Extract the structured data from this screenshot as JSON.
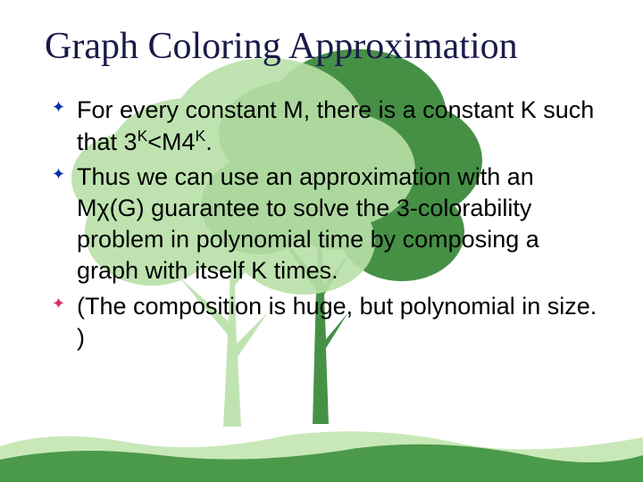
{
  "slide": {
    "title": "Graph Coloring Approximation",
    "bullets": [
      {
        "text_html": "For every constant M, there is a constant K such that 3<sup>K</sup>&lt;M4<sup>K</sup>."
      },
      {
        "text_html": "Thus we can use an approximation with an M&chi;(G) guarantee to solve the 3-colorability problem in polynomial time by composing a graph with itself K times."
      },
      {
        "text_html": "(The composition is huge, but polynomial in size. )"
      }
    ]
  },
  "theme": {
    "title_color": "#1a1a4a",
    "text_color": "#000000",
    "bullet_colors": [
      "#0033aa",
      "#0033aa",
      "#cc3366"
    ],
    "tree_light": "#b8e0a8",
    "tree_dark": "#3d8b3d",
    "ground_light": "#c8e8b8",
    "ground_dark": "#4a9a4a",
    "background": "#ffffff"
  }
}
